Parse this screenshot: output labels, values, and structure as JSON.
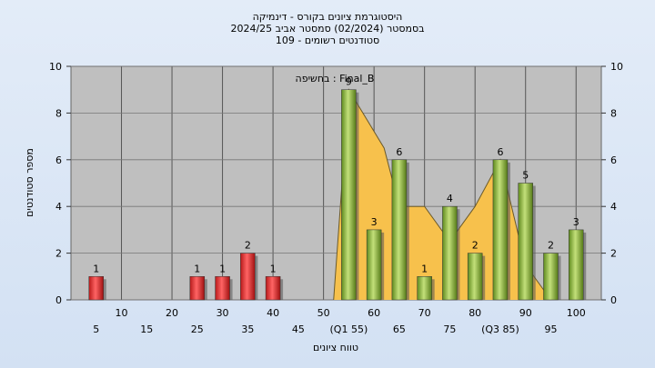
{
  "title": {
    "line1": "היסטוגרמת ציונים בקורס - דינמיקה",
    "line2": "בסמסטר  (02/2024)  סמסטר אביב 2024/25",
    "line3": "סטודנטים רשומים - 109"
  },
  "chart_data": {
    "type": "bar",
    "annotation": "בחשיפה : Final_B",
    "xlabel": "טווח ציונים",
    "ylabel": "מספר סטודנטים",
    "ylim": [
      0,
      10
    ],
    "yticks": [
      0,
      2,
      4,
      6,
      8,
      10
    ],
    "xlim": [
      0,
      105
    ],
    "x_ticks_upper": [
      "10",
      "20",
      "30",
      "40",
      "50",
      "60",
      "70",
      "80",
      "90",
      "100"
    ],
    "x_ticks_lower": [
      "5",
      "15",
      "25",
      "35",
      "45",
      "(Q1 55)",
      "65",
      "75",
      "(Q3 85)",
      "95"
    ],
    "series": [
      {
        "color": "#e03030",
        "bars": [
          {
            "x": 5,
            "value": 1
          },
          {
            "x": 25,
            "value": 1
          },
          {
            "x": 30,
            "value": 1
          },
          {
            "x": 35,
            "value": 2
          },
          {
            "x": 40,
            "value": 1
          }
        ]
      },
      {
        "color": "#8dba3e",
        "bars": [
          {
            "x": 55,
            "value": 9
          },
          {
            "x": 60,
            "value": 3
          },
          {
            "x": 65,
            "value": 6
          },
          {
            "x": 70,
            "value": 1
          },
          {
            "x": 75,
            "value": 4
          },
          {
            "x": 80,
            "value": 2
          },
          {
            "x": 85,
            "value": 6
          },
          {
            "x": 90,
            "value": 5
          },
          {
            "x": 95,
            "value": 2
          },
          {
            "x": 100,
            "value": 3
          }
        ]
      }
    ],
    "area": {
      "color": "#f7c14c",
      "points": [
        [
          52,
          0
        ],
        [
          55,
          9
        ],
        [
          62,
          6.5
        ],
        [
          65,
          4
        ],
        [
          70,
          4
        ],
        [
          75,
          2.5
        ],
        [
          80,
          4
        ],
        [
          85,
          6
        ],
        [
          90,
          1.5
        ],
        [
          95,
          0
        ]
      ]
    }
  }
}
